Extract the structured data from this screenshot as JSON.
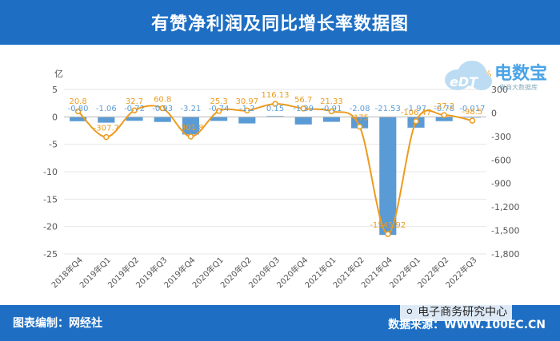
{
  "header": {
    "title": "有赞净利润及同比增长率数据图"
  },
  "footer": {
    "left": "图表编制：网经社",
    "right": "数据来源：WWW.100EC.CN"
  },
  "watermark": {
    "text": "电子商务研究中心"
  },
  "logo": {
    "text": "电数宝",
    "sub": "电商大数据库"
  },
  "colors": {
    "bar": "#5b9bd5",
    "line": "#ed9b1e",
    "accent": "#1e6fc4"
  },
  "chart_data": {
    "type": "bar",
    "title": "有赞净利润及同比增长率数据图",
    "categories": [
      "2018年Q4",
      "2019年Q1",
      "2019年Q2",
      "2019年Q3",
      "2019年Q4",
      "2020年Q1",
      "2020年Q2",
      "2020年Q3",
      "2020年Q4",
      "2021年Q1",
      "2021年Q2",
      "2021年Q4",
      "2022年Q1",
      "2022年Q2",
      "2022年Q3"
    ],
    "ylabel_left": "亿",
    "ylabel_right": "%",
    "ylim_left": [
      -25,
      5
    ],
    "ylim_right": [
      -1800,
      300
    ],
    "left_ticks": [
      "5",
      "0",
      "-5",
      "-10",
      "-15",
      "-20",
      "-25"
    ],
    "right_ticks": [
      "300",
      "0",
      "-300",
      "-600",
      "-900",
      "-1,200",
      "-1,500",
      "-1,800"
    ],
    "series": [
      {
        "type": "bar",
        "values": [
          -0.8,
          -1.06,
          -0.72,
          -0.93,
          -3.21,
          -0.74,
          -1.2,
          0.15,
          -1.39,
          -0.91,
          -2.08,
          -21.53,
          -1.97,
          -0.78,
          -0.017
        ],
        "labels": [
          "-0.80",
          "-1.06",
          "-0.72",
          "-0.93",
          "-3.21",
          "-0.74",
          "-1.2",
          "0.15",
          "-1.39",
          "-0.91",
          "-2.08",
          "-21.53",
          "-1.97",
          "-0.78",
          "-0.017"
        ]
      },
      {
        "type": "line",
        "values": [
          20.8,
          -307.7,
          32.7,
          60.8,
          -301.8,
          25.3,
          30.97,
          116.13,
          56.7,
          21.33,
          -175,
          -1545.92,
          -106.47,
          -27.2,
          -98.5
        ],
        "labels": [
          "20.8",
          "-307.7",
          "32.7",
          "60.8",
          "-301.8",
          "25.3",
          "30.97",
          "116.13",
          "56.7",
          "21.33",
          "-175",
          "-1545.92",
          "-106.47",
          "-27.2",
          "-98.5"
        ]
      }
    ]
  }
}
